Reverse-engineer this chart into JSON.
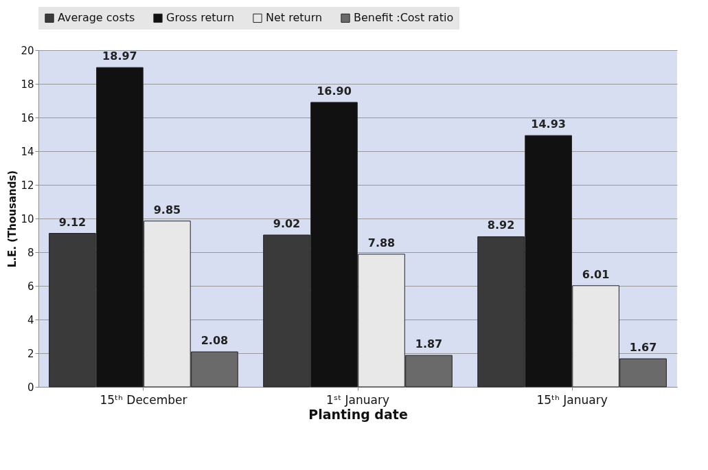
{
  "chart_data": {
    "type": "bar",
    "xlabel": "Planting date",
    "ylabel": "L.E. (Thousands)",
    "categories": [
      "15ᵗʰ December",
      "1ˢᵗ January",
      "15ᵗʰ January"
    ],
    "series": [
      {
        "name": "Average costs",
        "color": "#3a3a3a",
        "values": [
          9.12,
          9.02,
          8.92
        ],
        "value_labels": [
          "9.12",
          "9.02",
          "8.92"
        ]
      },
      {
        "name": "Gross return",
        "color": "#111111",
        "values": [
          18.97,
          16.9,
          14.93
        ],
        "value_labels": [
          "18.97",
          "16.90",
          "14.93"
        ]
      },
      {
        "name": "Net return",
        "color": "#e8e8e8",
        "values": [
          9.85,
          7.88,
          6.01
        ],
        "value_labels": [
          "9.85",
          "7.88",
          "6.01"
        ]
      },
      {
        "name": "Benefit :Cost ratio",
        "color": "#6a6a6a",
        "values": [
          2.08,
          1.87,
          1.67
        ],
        "value_labels": [
          "2.08",
          "1.87",
          "1.67"
        ]
      }
    ],
    "ylim": [
      0,
      20
    ],
    "yticks": [
      0,
      2,
      4,
      6,
      8,
      10,
      12,
      14,
      16,
      18,
      20
    ],
    "grid": "y",
    "legend": "top"
  }
}
